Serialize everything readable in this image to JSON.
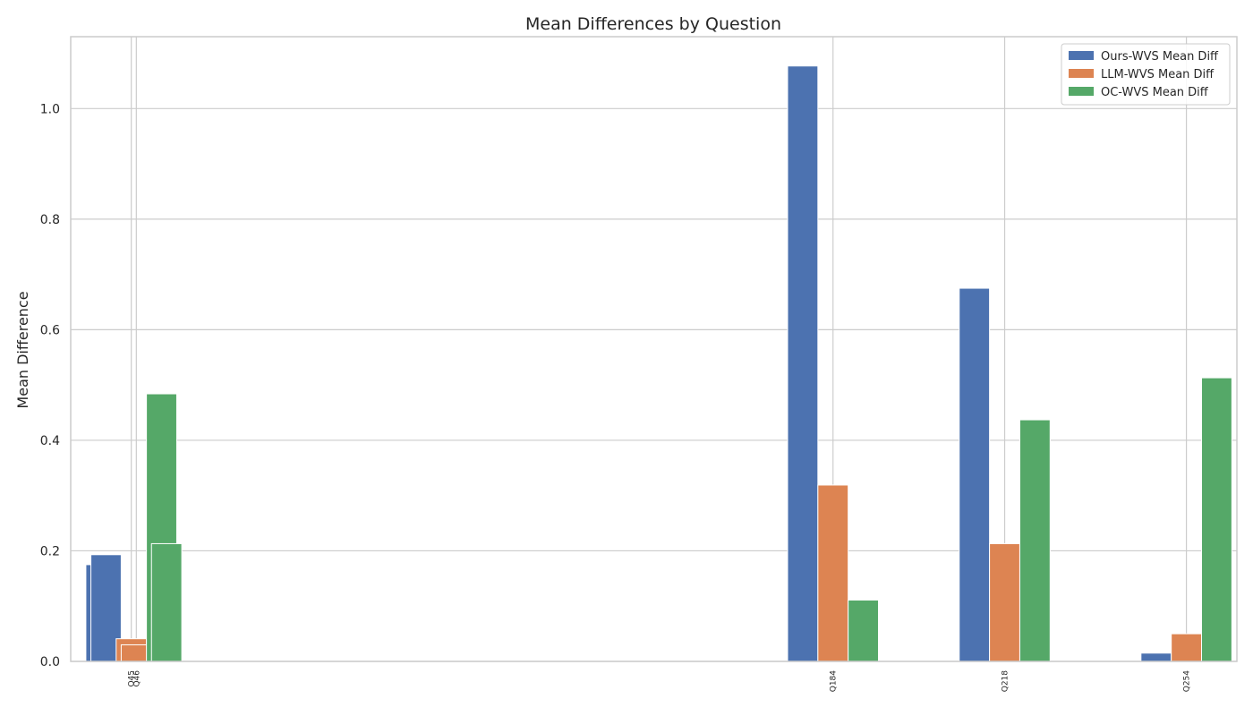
{
  "chart_data": {
    "type": "bar",
    "title": "Mean Differences by Question",
    "xlabel": "",
    "ylabel": "Mean Difference",
    "x_positions": [
      45,
      46,
      184,
      218,
      254
    ],
    "categories": [
      "Q45",
      "Q46",
      "Q184",
      "Q218",
      "Q254"
    ],
    "series": [
      {
        "name": "Ours-WVS Mean Diff",
        "color": "#4c72b0",
        "values": [
          0.175,
          0.193,
          1.077,
          0.675,
          0.015
        ]
      },
      {
        "name": "LLM-WVS Mean Diff",
        "color": "#dd8452",
        "values": [
          0.041,
          0.03,
          0.319,
          0.213,
          0.05
        ]
      },
      {
        "name": "OC-WVS Mean Diff",
        "color": "#55a868",
        "values": [
          0.484,
          0.213,
          0.111,
          0.437,
          0.513
        ]
      }
    ],
    "ylim": [
      0,
      1.13
    ],
    "yticks": [
      "0.0",
      "0.2",
      "0.4",
      "0.6",
      "0.8",
      "1.0"
    ],
    "grid": true,
    "legend_position": "top-right"
  }
}
